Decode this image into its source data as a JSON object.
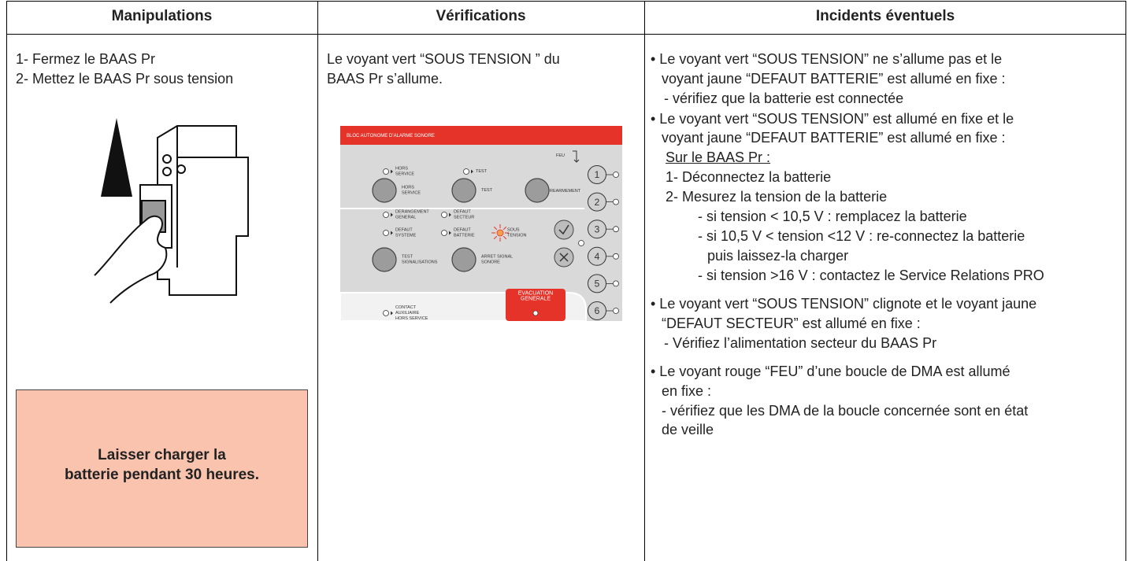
{
  "table": {
    "headers": [
      "Manipulations",
      "Vérifications",
      "Incidents éventuels"
    ],
    "manipulations": {
      "steps": [
        "1- Fermez le BAAS Pr",
        "2- Mettez le BAAS Pr sous tension"
      ],
      "note": [
        "Laisser charger la",
        "batterie pendant 30 heures."
      ]
    },
    "verifications": {
      "text": [
        "Le voyant vert “SOUS TENSION ” du",
        "BAAS Pr s’allume."
      ],
      "panel": {
        "title": "BLOC AUTONOME D’ALARME SONORE",
        "feu": "FEU",
        "led_hors_service": [
          "HORS",
          "SERVICE"
        ],
        "led_test": "TEST",
        "btn_hors_service": [
          "HORS",
          "SERVICE"
        ],
        "btn_test": "TEST",
        "btn_rearmement": "REARMEMENT",
        "led_derangement": [
          "DERANGEMENT",
          "GENERAL"
        ],
        "led_defaut_secteur": [
          "DEFAUT",
          "SECTEUR"
        ],
        "led_defaut_systeme": [
          "DEFAUT",
          "SYSTEME"
        ],
        "led_defaut_batterie": [
          "DEFAUT",
          "BATTERIE"
        ],
        "led_sous_tension": [
          "SOUS",
          "TENSION"
        ],
        "btn_test_signalisations": [
          "TEST",
          "SIGNALISATIONS"
        ],
        "btn_arret": [
          "ARRET SIGNAL",
          "SONORE"
        ],
        "led_contact": [
          "CONTACT",
          "AUXILIAIRE",
          "HORS SERVICE"
        ],
        "btn_evacuation": [
          "EVACUATION",
          "GENERALE"
        ],
        "loops": [
          "1",
          "2",
          "3",
          "4",
          "5",
          "6"
        ]
      }
    },
    "incidents": [
      [
        "• Le voyant vert “SOUS TENSION” ne s’allume pas et le",
        "voyant jaune “DEFAUT BATTERIE” est allumé en fixe :",
        "- vérifiez que la batterie est connectée"
      ],
      [
        "• Le voyant vert “SOUS TENSION” est allumé en fixe et le",
        "voyant jaune “DEFAUT BATTERIE” est allumé en fixe :",
        "Sur le BAAS Pr :",
        "1- Déconnectez la batterie",
        "2- Mesurez la tension de la batterie",
        "- si tension < 10,5 V : remplacez la batterie",
        "- si 10,5 V < tension <12 V : re-connectez la batterie",
        "puis laissez-la charger",
        "- si tension >16 V : contactez le Service Relations PRO"
      ],
      [
        "• Le voyant vert “SOUS TENSION” clignote et le voyant jaune",
        "“DEFAUT SECTEUR” est allumé en fixe :",
        "- Vérifiez l’alimentation secteur du BAAS Pr"
      ],
      [
        "• Le voyant rouge “FEU” d’une boucle de DMA est allumé",
        "en fixe :",
        "- vérifiez que les DMA de la boucle concernée sont en état",
        "de veille"
      ]
    ]
  }
}
